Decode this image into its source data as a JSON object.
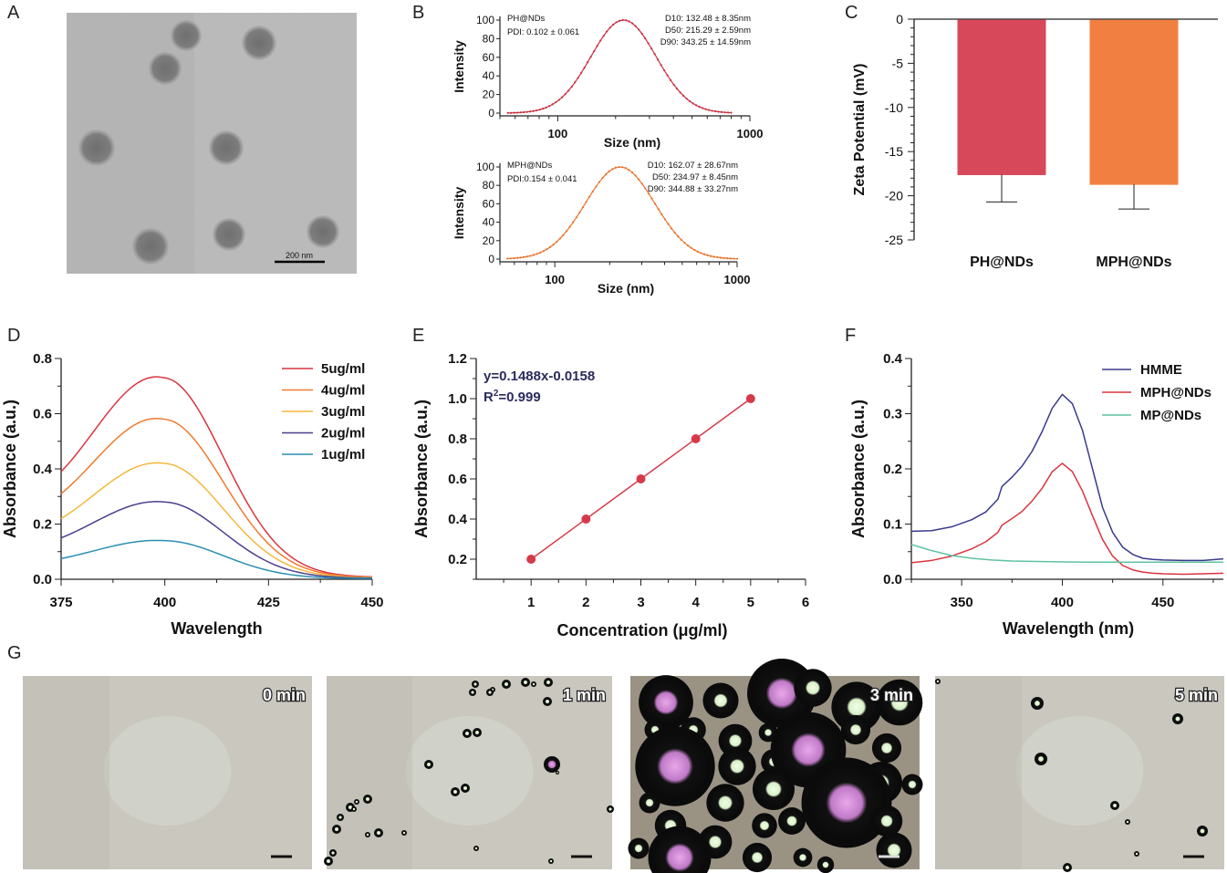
{
  "panel_labels": [
    "A",
    "B",
    "C",
    "D",
    "E",
    "F",
    "G"
  ],
  "tem": {
    "scale_bar_label": "200 nm"
  },
  "chart_data": [
    {
      "panel": "B-top",
      "type": "line",
      "xlabel": "Size (nm)",
      "ylabel": "Intensity",
      "x_scale": "log",
      "xlim": [
        50,
        1000
      ],
      "ylim": [
        0,
        100
      ],
      "x_ticks": [
        100,
        1000
      ],
      "y_ticks": [
        0,
        20,
        40,
        60,
        80,
        100
      ],
      "annotations_left": [
        "PH@NDs",
        "PDI: 0.102 ± 0.061"
      ],
      "annotations_right": [
        "D10: 132.48 ± 8.35nm",
        "D50: 215.29 ± 2.59nm",
        "D90: 343.25 ± 14.59nm"
      ],
      "series": [
        {
          "peak_x": 220,
          "peak_y": 100,
          "sigma_log10": 0.17,
          "x_range": [
            55,
            800
          ],
          "color": "#c9303f"
        }
      ]
    },
    {
      "panel": "B-bottom",
      "type": "line",
      "xlabel": "Size (nm)",
      "ylabel": "Intensity",
      "x_scale": "log",
      "xlim": [
        50,
        1000
      ],
      "ylim": [
        0,
        100
      ],
      "x_ticks": [
        100,
        1000
      ],
      "y_ticks": [
        0,
        20,
        40,
        60,
        80,
        100
      ],
      "annotations_left": [
        "MPH@NDs",
        "PDI:0.154 ± 0.041"
      ],
      "annotations_right": [
        "D10: 162.07 ± 28.67nm",
        "D50: 234.97 ± 8.45nm",
        "D90: 344.88 ± 33.27nm"
      ],
      "series": [
        {
          "peak_x": 228,
          "peak_y": 100,
          "sigma_log10": 0.19,
          "x_range": [
            55,
            1000
          ],
          "color": "#e8742e"
        }
      ]
    },
    {
      "panel": "C",
      "type": "bar",
      "xlabel": "",
      "ylabel": "Zeta Potential (mV)",
      "categories": [
        "PH@NDs",
        "MPH@NDs"
      ],
      "values": [
        -17.6,
        -18.7
      ],
      "errors": [
        3.1,
        2.8
      ],
      "colors": [
        "#d8485b",
        "#f17f42"
      ],
      "ylim": [
        -25,
        0
      ],
      "y_ticks": [
        0,
        -5,
        -10,
        -15,
        -20,
        -25
      ]
    },
    {
      "panel": "D",
      "type": "line",
      "xlabel": "Wavelength",
      "ylabel": "Absorbance (a.u.)",
      "xlim": [
        375,
        450
      ],
      "ylim": [
        0,
        0.8
      ],
      "x_ticks": [
        375,
        400,
        425,
        450
      ],
      "y_ticks": [
        0.0,
        0.2,
        0.4,
        0.6,
        0.8
      ],
      "legend_position": "top-right",
      "series": [
        {
          "name": "5ug/ml",
          "color": "#d9353f",
          "peak": 0.73,
          "start": 0.39,
          "end": 0.012
        },
        {
          "name": "4ug/ml",
          "color": "#f07a30",
          "peak": 0.58,
          "start": 0.31,
          "end": 0.01
        },
        {
          "name": "3ug/ml",
          "color": "#f6b73c",
          "peak": 0.42,
          "start": 0.22,
          "end": 0.008
        },
        {
          "name": "2ug/ml",
          "color": "#4a3f8f",
          "peak": 0.28,
          "start": 0.15,
          "end": 0.006
        },
        {
          "name": "1ug/ml",
          "color": "#2a8fb0",
          "peak": 0.14,
          "start": 0.075,
          "end": 0.004
        }
      ]
    },
    {
      "panel": "E",
      "type": "scatter",
      "xlabel": "Concentration  (μg/ml)",
      "ylabel": "Absorbance  (a.u.)",
      "xlim": [
        0,
        6
      ],
      "ylim": [
        0.1,
        1.2
      ],
      "x_ticks": [
        1,
        2,
        3,
        4,
        5,
        6
      ],
      "y_ticks": [
        0.2,
        0.4,
        0.6,
        0.8,
        1.0,
        1.2
      ],
      "equation": "y=0.1488x-0.0158",
      "r2_label": "R",
      "r2_sup": "2",
      "r2_value": "=0.999",
      "x": [
        1,
        2,
        3,
        4,
        5
      ],
      "y": [
        0.2,
        0.4,
        0.6,
        0.8,
        1.0
      ],
      "color": "#d63a4a"
    },
    {
      "panel": "F",
      "type": "line",
      "xlabel": "Wavelength  (nm)",
      "ylabel": "Absorbance (a.u.)",
      "xlim": [
        325,
        480
      ],
      "ylim": [
        0,
        0.4
      ],
      "x_ticks": [
        350,
        400,
        450
      ],
      "y_ticks": [
        0.0,
        0.1,
        0.2,
        0.3,
        0.4
      ],
      "legend_position": "top-right",
      "series": [
        {
          "name": "HMME",
          "color": "#3b3a8c",
          "x": [
            325,
            335,
            345,
            355,
            362,
            368,
            370,
            375,
            380,
            385,
            390,
            395,
            400,
            405,
            410,
            415,
            420,
            425,
            430,
            435,
            440,
            445,
            450,
            460,
            470,
            480
          ],
          "y": [
            0.087,
            0.088,
            0.095,
            0.108,
            0.122,
            0.145,
            0.168,
            0.185,
            0.205,
            0.232,
            0.268,
            0.31,
            0.335,
            0.318,
            0.27,
            0.2,
            0.13,
            0.085,
            0.058,
            0.045,
            0.038,
            0.036,
            0.035,
            0.034,
            0.034,
            0.037
          ]
        },
        {
          "name": "MPH@NDs",
          "color": "#d9353f",
          "x": [
            325,
            335,
            345,
            355,
            362,
            368,
            370,
            375,
            380,
            385,
            390,
            395,
            400,
            405,
            410,
            415,
            420,
            425,
            430,
            435,
            440,
            445,
            450,
            460,
            470,
            480
          ],
          "y": [
            0.03,
            0.034,
            0.042,
            0.055,
            0.068,
            0.085,
            0.098,
            0.11,
            0.123,
            0.142,
            0.165,
            0.195,
            0.21,
            0.195,
            0.16,
            0.115,
            0.072,
            0.042,
            0.025,
            0.017,
            0.013,
            0.011,
            0.01,
            0.009,
            0.01,
            0.011
          ]
        },
        {
          "name": "MP@NDs",
          "color": "#5dc3a0",
          "x": [
            325,
            335,
            345,
            355,
            365,
            375,
            390,
            410,
            430,
            450,
            465,
            480
          ],
          "y": [
            0.063,
            0.052,
            0.043,
            0.038,
            0.035,
            0.033,
            0.032,
            0.031,
            0.031,
            0.031,
            0.031,
            0.031
          ]
        }
      ]
    }
  ],
  "micrographs": [
    {
      "time_label": "0 min"
    },
    {
      "time_label": "1 min"
    },
    {
      "time_label": "3 min"
    },
    {
      "time_label": "5 min"
    }
  ]
}
